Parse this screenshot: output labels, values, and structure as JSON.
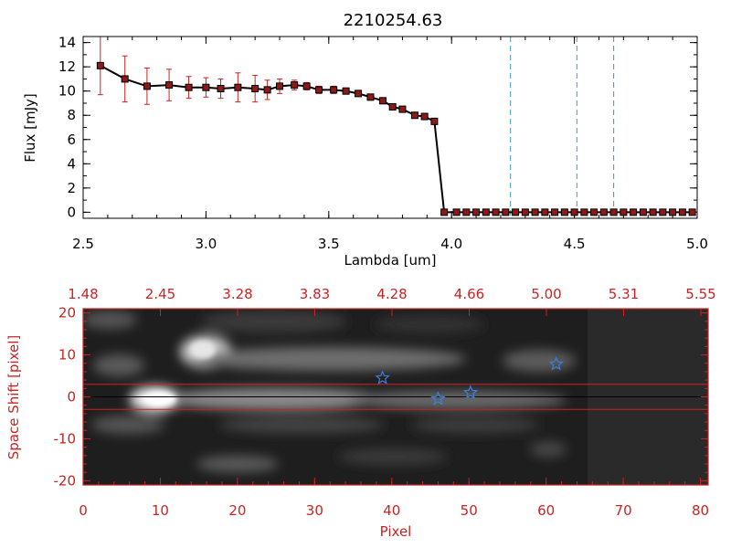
{
  "chart_data": [
    {
      "type": "line",
      "title": "2210254.63",
      "xlabel": "Lambda [um]",
      "ylabel": "Flux [mJy]",
      "xlim": [
        2.5,
        5.0
      ],
      "ylim": [
        -0.5,
        14.5
      ],
      "xticks": [
        "2.5",
        "3.0",
        "3.5",
        "4.0",
        "4.5",
        "5.0"
      ],
      "yticks": [
        "0",
        "2",
        "4",
        "6",
        "8",
        "10",
        "12",
        "14"
      ],
      "series": [
        {
          "x": [
            2.57,
            2.67,
            2.76,
            2.85,
            2.93,
            3.0,
            3.06,
            3.13,
            3.2,
            3.25,
            3.3,
            3.36,
            3.41,
            3.46,
            3.52,
            3.57,
            3.62,
            3.67,
            3.72,
            3.76,
            3.8,
            3.85,
            3.89,
            3.93,
            3.97,
            4.02,
            4.06,
            4.1,
            4.14,
            4.18,
            4.22,
            4.26,
            4.3,
            4.34,
            4.38,
            4.42,
            4.46,
            4.5,
            4.54,
            4.58,
            4.62,
            4.66,
            4.7,
            4.74,
            4.78,
            4.82,
            4.86,
            4.9,
            4.94,
            4.98
          ],
          "y": [
            12.1,
            11.0,
            10.4,
            10.5,
            10.3,
            10.3,
            10.2,
            10.3,
            10.2,
            10.1,
            10.4,
            10.5,
            10.4,
            10.1,
            10.1,
            10.0,
            9.8,
            9.5,
            9.2,
            8.7,
            8.5,
            8.0,
            7.9,
            7.5,
            0,
            0,
            0,
            0,
            0,
            0,
            0,
            0,
            0,
            0,
            0,
            0,
            0,
            0,
            0,
            0,
            0,
            0,
            0,
            0,
            0,
            0,
            0,
            0,
            0,
            0
          ],
          "yerr": [
            2.4,
            1.9,
            1.5,
            1.3,
            0.9,
            0.8,
            0.8,
            1.2,
            1.1,
            0.8,
            0.6,
            0.4,
            0.3,
            0.3,
            0.3,
            0.2,
            0.2,
            0.2,
            0.2,
            0.2,
            0.2,
            0.2,
            0.2,
            0.2,
            0,
            0,
            0,
            0,
            0,
            0,
            0,
            0,
            0,
            0,
            0,
            0,
            0,
            0,
            0,
            0,
            0,
            0,
            0,
            0,
            0,
            0,
            0,
            0,
            0,
            0
          ]
        }
      ],
      "vlines": [
        4.24,
        4.51,
        4.66
      ],
      "colors": {
        "line": "#000000",
        "marker": "#8b1a1a",
        "errorbar": "#cc2222",
        "vline": "#3a9ab0"
      }
    },
    {
      "type": "heatmap",
      "xlabel": "Pixel",
      "ylabel": "Space Shift [pixel]",
      "xlim": [
        0,
        81
      ],
      "ylim": [
        -21,
        21
      ],
      "xticks": [
        "0",
        "10",
        "20",
        "30",
        "40",
        "50",
        "60",
        "70",
        "80"
      ],
      "yticks": [
        "-20",
        "-10",
        "0",
        "10",
        "20"
      ],
      "top_axis_ticks": [
        "1.48",
        "2.45",
        "3.28",
        "3.83",
        "4.28",
        "4.66",
        "5.00",
        "5.31",
        "5.55"
      ],
      "hlines": [
        3,
        0,
        -3
      ],
      "stars": [
        {
          "x": 38.8,
          "y": 4.5
        },
        {
          "x": 46.0,
          "y": -0.5
        },
        {
          "x": 50.2,
          "y": 1.0
        },
        {
          "x": 61.3,
          "y": 7.8
        }
      ],
      "colors": {
        "axis": "#cc2222",
        "star": "#3a7fe0",
        "hline": "#cc2222",
        "centerline": "#000000"
      }
    }
  ]
}
